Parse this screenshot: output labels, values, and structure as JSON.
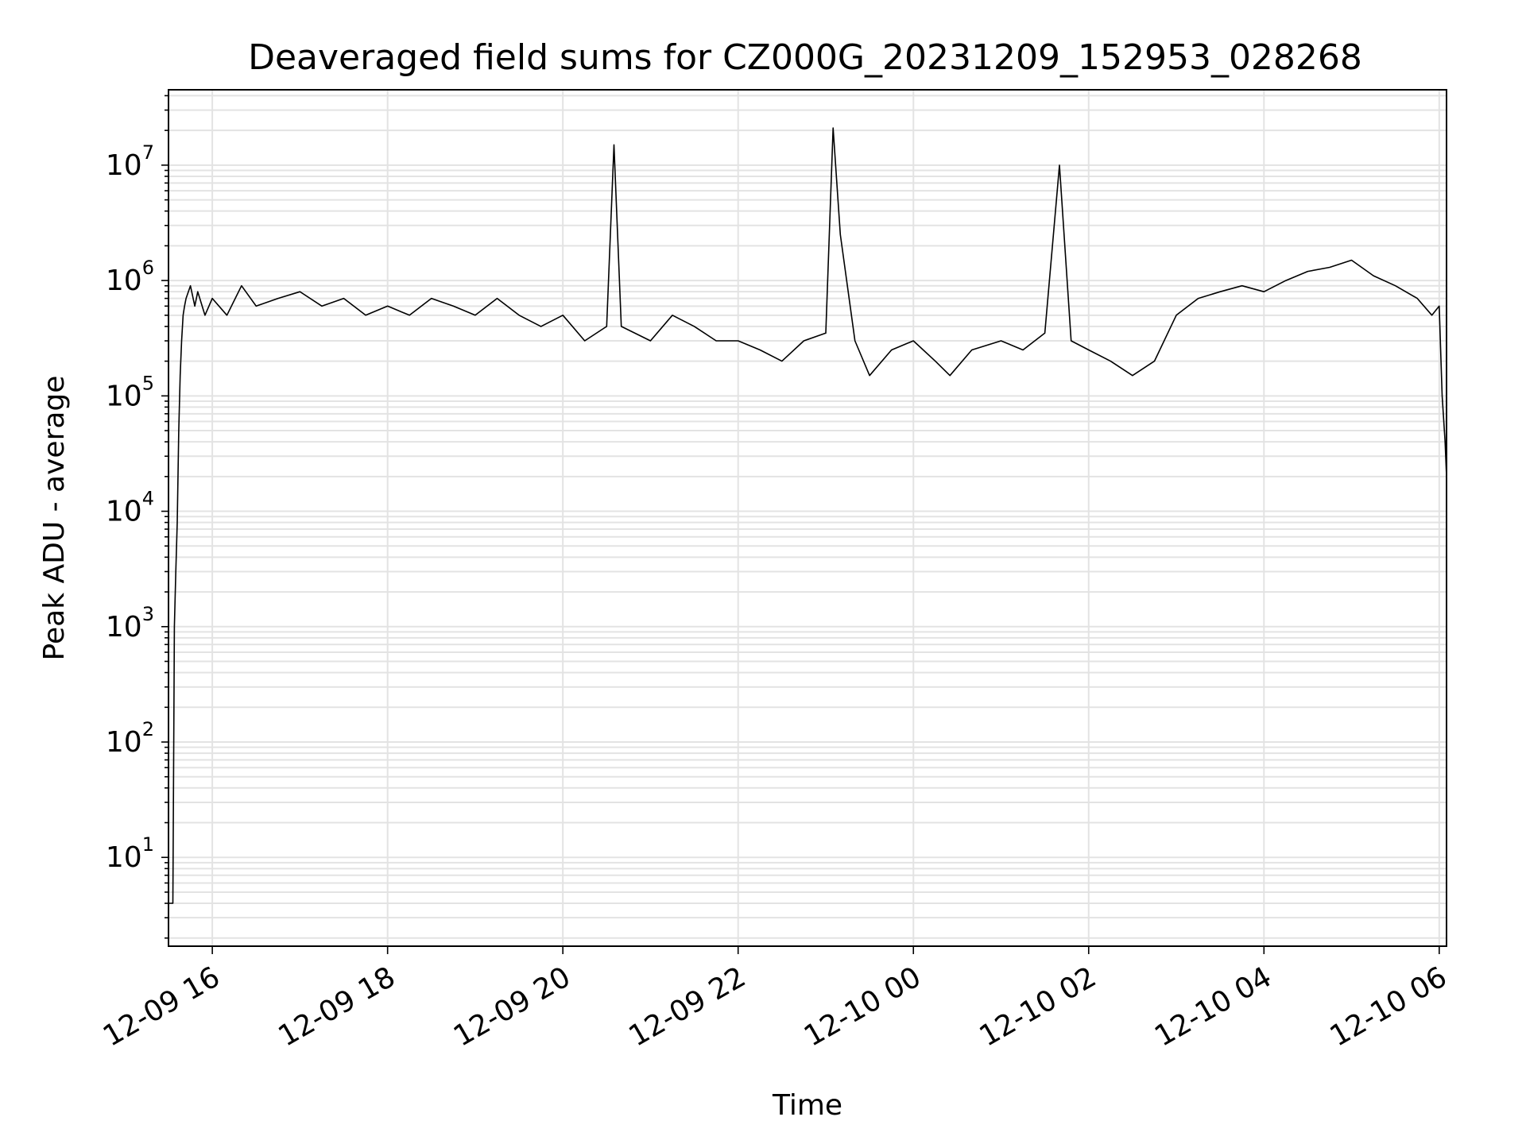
{
  "chart_data": {
    "type": "line",
    "title": "Deaveraged field sums for CZ000G_20231209_152953_028268",
    "xlabel": "Time",
    "ylabel": "Peak ADU - average",
    "y_scale": "log",
    "ylim": [
      1.7,
      45000000
    ],
    "xlim": [
      "2023-12-09 15:30",
      "2023-12-10 06:05"
    ],
    "grid": true,
    "line_color": "#000000",
    "x_ticks": [
      {
        "t": "2023-12-09 16:00",
        "label": "12-09 16"
      },
      {
        "t": "2023-12-09 18:00",
        "label": "12-09 18"
      },
      {
        "t": "2023-12-09 20:00",
        "label": "12-09 20"
      },
      {
        "t": "2023-12-09 22:00",
        "label": "12-09 22"
      },
      {
        "t": "2023-12-10 00:00",
        "label": "12-10 00"
      },
      {
        "t": "2023-12-10 02:00",
        "label": "12-10 02"
      },
      {
        "t": "2023-12-10 04:00",
        "label": "12-10 04"
      },
      {
        "t": "2023-12-10 06:00",
        "label": "12-10 06"
      }
    ],
    "y_ticks": [
      {
        "value": 10,
        "base": "10",
        "exp": "1"
      },
      {
        "value": 100,
        "base": "10",
        "exp": "2"
      },
      {
        "value": 1000,
        "base": "10",
        "exp": "3"
      },
      {
        "value": 10000,
        "base": "10",
        "exp": "4"
      },
      {
        "value": 100000,
        "base": "10",
        "exp": "5"
      },
      {
        "value": 1000000,
        "base": "10",
        "exp": "6"
      },
      {
        "value": 10000000,
        "base": "10",
        "exp": "7"
      }
    ],
    "series": [
      {
        "x": [
          "2023-12-09 15:30",
          "2023-12-09 15:33",
          "2023-12-09 15:34",
          "2023-12-09 15:35",
          "2023-12-09 15:36",
          "2023-12-09 15:37",
          "2023-12-09 15:38",
          "2023-12-09 15:39",
          "2023-12-09 15:40",
          "2023-12-09 15:41",
          "2023-12-09 15:42",
          "2023-12-09 15:45",
          "2023-12-09 15:48",
          "2023-12-09 15:50",
          "2023-12-09 15:55",
          "2023-12-09 16:00",
          "2023-12-09 16:10",
          "2023-12-09 16:20",
          "2023-12-09 16:30",
          "2023-12-09 16:45",
          "2023-12-09 17:00",
          "2023-12-09 17:15",
          "2023-12-09 17:30",
          "2023-12-09 17:45",
          "2023-12-09 18:00",
          "2023-12-09 18:15",
          "2023-12-09 18:30",
          "2023-12-09 18:45",
          "2023-12-09 19:00",
          "2023-12-09 19:15",
          "2023-12-09 19:30",
          "2023-12-09 19:45",
          "2023-12-09 20:00",
          "2023-12-09 20:15",
          "2023-12-09 20:30",
          "2023-12-09 20:35",
          "2023-12-09 20:40",
          "2023-12-09 21:00",
          "2023-12-09 21:15",
          "2023-12-09 21:30",
          "2023-12-09 21:45",
          "2023-12-09 22:00",
          "2023-12-09 22:15",
          "2023-12-09 22:30",
          "2023-12-09 22:45",
          "2023-12-09 23:00",
          "2023-12-09 23:05",
          "2023-12-09 23:10",
          "2023-12-09 23:20",
          "2023-12-09 23:30",
          "2023-12-09 23:45",
          "2023-12-10 00:00",
          "2023-12-10 00:15",
          "2023-12-10 00:25",
          "2023-12-10 00:40",
          "2023-12-10 01:00",
          "2023-12-10 01:15",
          "2023-12-10 01:30",
          "2023-12-10 01:40",
          "2023-12-10 01:48",
          "2023-12-10 02:00",
          "2023-12-10 02:15",
          "2023-12-10 02:30",
          "2023-12-10 02:45",
          "2023-12-10 03:00",
          "2023-12-10 03:15",
          "2023-12-10 03:30",
          "2023-12-10 03:45",
          "2023-12-10 04:00",
          "2023-12-10 04:15",
          "2023-12-10 04:30",
          "2023-12-10 04:45",
          "2023-12-10 05:00",
          "2023-12-10 05:15",
          "2023-12-10 05:30",
          "2023-12-10 05:45",
          "2023-12-10 05:55",
          "2023-12-10 06:00",
          "2023-12-10 06:02",
          "2023-12-10 06:04",
          "2023-12-10 06:05"
        ],
        "y": [
          4,
          4,
          1000,
          3000,
          8000,
          50000,
          150000,
          300000,
          500000,
          600000,
          700000,
          900000,
          600000,
          800000,
          500000,
          700000,
          500000,
          900000,
          600000,
          700000,
          800000,
          600000,
          700000,
          500000,
          600000,
          500000,
          700000,
          600000,
          500000,
          700000,
          500000,
          400000,
          500000,
          300000,
          400000,
          15000000,
          400000,
          300000,
          500000,
          400000,
          300000,
          300000,
          250000,
          200000,
          300000,
          350000,
          21000000,
          2500000,
          300000,
          150000,
          250000,
          300000,
          200000,
          150000,
          250000,
          300000,
          250000,
          350000,
          10000000,
          300000,
          250000,
          200000,
          150000,
          200000,
          500000,
          700000,
          800000,
          900000,
          800000,
          1000000,
          1200000,
          1300000,
          1500000,
          1100000,
          900000,
          700000,
          500000,
          600000,
          100000,
          40000,
          20000
        ]
      }
    ]
  }
}
